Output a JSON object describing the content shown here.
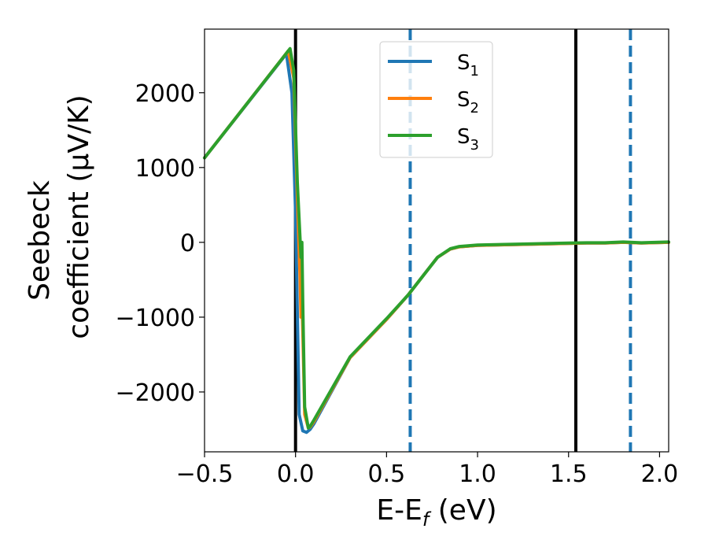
{
  "chart_data": {
    "type": "line",
    "xlabel": "E-E",
    "xlabel_sub": "f",
    "xlabel_unit": " (eV)",
    "ylabel_line1": "Seebeck",
    "ylabel_line2": "coefficient  (μV/K)",
    "xlim": [
      -0.5,
      2.05
    ],
    "ylim": [
      -2800,
      2850
    ],
    "x_ticks": [
      -0.5,
      0.0,
      0.5,
      1.0,
      1.5,
      2.0
    ],
    "x_tick_labels": [
      "−0.5",
      "0.0",
      "0.5",
      "1.0",
      "1.5",
      "2.0"
    ],
    "y_ticks": [
      -2000,
      -1000,
      0,
      1000,
      2000
    ],
    "y_tick_labels": [
      "−2000",
      "−1000",
      "0",
      "1000",
      "2000"
    ],
    "grid": false,
    "legend_position": "top-center",
    "series": [
      {
        "name": "S",
        "sub": "1",
        "color": "#1f77b4",
        "x": [
          -0.5,
          -0.05,
          -0.02,
          0.0,
          0.02,
          0.04,
          0.06,
          0.08,
          0.1,
          0.3,
          0.5,
          0.62,
          0.7,
          0.78,
          0.85,
          0.9,
          1.0,
          1.2,
          1.4,
          1.5,
          1.6,
          1.7,
          1.8,
          1.9,
          2.05
        ],
        "y": [
          1130,
          2520,
          2000,
          400,
          -2300,
          -2520,
          -2540,
          -2500,
          -2430,
          -1540,
          -1030,
          -700,
          -450,
          -200,
          -90,
          -60,
          -40,
          -30,
          -20,
          -15,
          -10,
          -10,
          0,
          -10,
          0
        ]
      },
      {
        "name": "S",
        "sub": "2",
        "color": "#ff7f0e",
        "x": [
          -0.5,
          -0.04,
          -0.01,
          0.01,
          0.025,
          0.03,
          0.035,
          0.05,
          0.07,
          0.08,
          0.1,
          0.3,
          0.5,
          0.62,
          0.7,
          0.78,
          0.85,
          0.9,
          1.0,
          1.2,
          1.4,
          1.5,
          1.6,
          1.7,
          1.8,
          1.9,
          2.05
        ],
        "y": [
          1130,
          2560,
          2200,
          600,
          -500,
          -1000,
          -700,
          -2300,
          -2480,
          -2470,
          -2400,
          -1540,
          -1030,
          -700,
          -450,
          -200,
          -90,
          -60,
          -40,
          -30,
          -20,
          -15,
          -10,
          -10,
          0,
          -10,
          0
        ]
      },
      {
        "name": "S",
        "sub": "3",
        "color": "#2ca02c",
        "x": [
          -0.5,
          -0.03,
          -0.01,
          0.01,
          0.03,
          0.035,
          0.04,
          0.05,
          0.07,
          0.08,
          0.1,
          0.3,
          0.5,
          0.62,
          0.7,
          0.78,
          0.85,
          0.9,
          1.0,
          1.2,
          1.4,
          1.5,
          1.6,
          1.7,
          1.8,
          1.9,
          2.05
        ],
        "y": [
          1130,
          2590,
          2300,
          800,
          -200,
          0,
          -800,
          -2200,
          -2480,
          -2460,
          -2380,
          -1530,
          -1020,
          -700,
          -450,
          -200,
          -85,
          -55,
          -35,
          -25,
          -15,
          -10,
          -5,
          -5,
          5,
          -5,
          5
        ]
      }
    ],
    "vlines": [
      {
        "x": 0.0,
        "style": "solid",
        "color": "#000000"
      },
      {
        "x": 1.54,
        "style": "solid",
        "color": "#000000"
      },
      {
        "x": 0.63,
        "style": "dashed",
        "color": "#1f77b4"
      },
      {
        "x": 1.84,
        "style": "dashed",
        "color": "#1f77b4"
      }
    ]
  }
}
